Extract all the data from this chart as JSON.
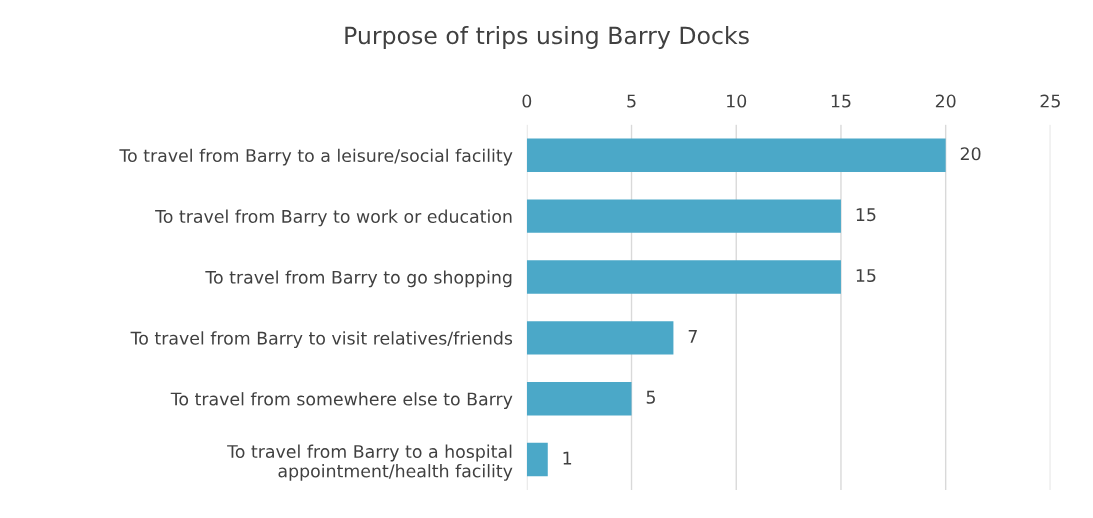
{
  "chart_data": {
    "type": "bar",
    "orientation": "horizontal",
    "title": "Purpose of trips using Barry Docks",
    "categories": [
      "To travel from Barry to a leisure/social facility",
      "To travel from Barry to work or education",
      "To travel from Barry to go shopping",
      "To travel from Barry to visit relatives/friends",
      "To travel from somewhere else to Barry",
      "To travel from Barry to a hospital\nappointment/health facility"
    ],
    "values": [
      20,
      15,
      15,
      7,
      5,
      1
    ],
    "color": "#4ba8c8",
    "xlim": [
      0,
      25
    ],
    "xticks": [
      0,
      5,
      10,
      15,
      20,
      25
    ],
    "grid": "x",
    "data_labels": true
  }
}
